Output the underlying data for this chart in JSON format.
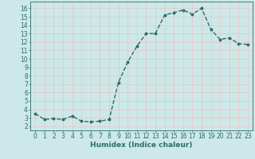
{
  "x": [
    0,
    1,
    2,
    3,
    4,
    5,
    6,
    7,
    8,
    9,
    10,
    11,
    12,
    13,
    14,
    15,
    16,
    17,
    18,
    19,
    20,
    21,
    22,
    23
  ],
  "y": [
    3.5,
    2.8,
    2.9,
    2.8,
    3.2,
    2.6,
    2.5,
    2.6,
    2.8,
    7.2,
    9.6,
    11.5,
    13.0,
    13.0,
    15.2,
    15.5,
    15.8,
    15.3,
    16.0,
    13.5,
    12.3,
    12.5,
    11.8,
    11.7
  ],
  "line_color": "#2d6e65",
  "marker": "o",
  "marker_size": 1.8,
  "bg_color": "#cce8e8",
  "grid_color": "#e8c8c8",
  "title": "",
  "xlabel": "Humidex (Indice chaleur)",
  "ylabel": "",
  "xlim": [
    -0.5,
    23.5
  ],
  "ylim": [
    1.5,
    16.8
  ],
  "yticks": [
    2,
    3,
    4,
    5,
    6,
    7,
    8,
    9,
    10,
    11,
    12,
    13,
    14,
    15,
    16
  ],
  "xticks": [
    0,
    1,
    2,
    3,
    4,
    5,
    6,
    7,
    8,
    9,
    10,
    11,
    12,
    13,
    14,
    15,
    16,
    17,
    18,
    19,
    20,
    21,
    22,
    23
  ],
  "xlabel_fontsize": 6.5,
  "tick_fontsize": 5.5,
  "line_width": 1.0
}
